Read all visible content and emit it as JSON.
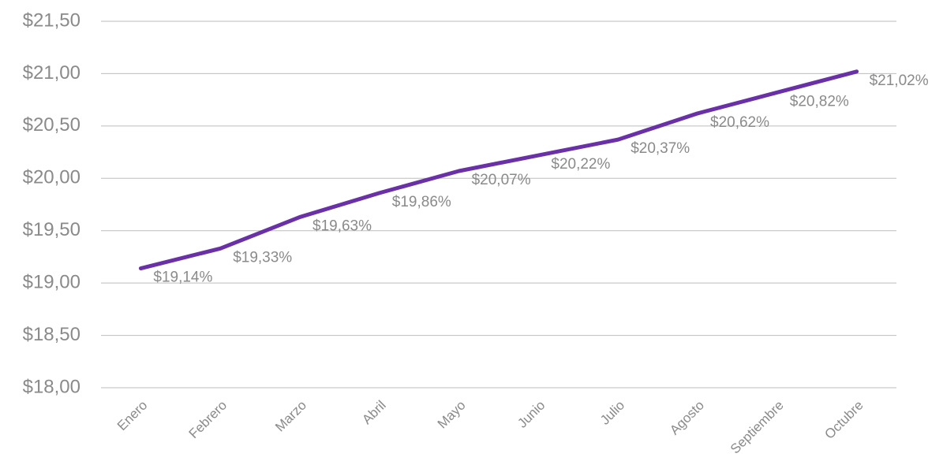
{
  "chart_data": {
    "type": "line",
    "categories": [
      "Enero",
      "Febrero",
      "Marzo",
      "Abril",
      "Mayo",
      "Junio",
      "Julio",
      "Agosto",
      "Septiembre",
      "Octubre"
    ],
    "values": [
      19.14,
      19.33,
      19.63,
      19.86,
      20.07,
      20.22,
      20.37,
      20.62,
      20.82,
      21.02
    ],
    "value_labels": [
      "$19,14%",
      "$19,33%",
      "$19,63%",
      "$19,86%",
      "$20,07%",
      "$20,22%",
      "$20,37%",
      "$20,62%",
      "$20,82%",
      "$21,02%"
    ],
    "color": "#6a30a8",
    "ylim": [
      18,
      21.5
    ],
    "yticks": [
      {
        "value": 18,
        "label": "$18,00"
      },
      {
        "value": 18.5,
        "label": "$18,50"
      },
      {
        "value": 19,
        "label": "$19,00"
      },
      {
        "value": 19.5,
        "label": "$19,50"
      },
      {
        "value": 20,
        "label": "$20,00"
      },
      {
        "value": 20.5,
        "label": "$20,50"
      },
      {
        "value": 21,
        "label": "$21,00"
      },
      {
        "value": 21.5,
        "label": "$21,50"
      }
    ],
    "grid": true
  }
}
